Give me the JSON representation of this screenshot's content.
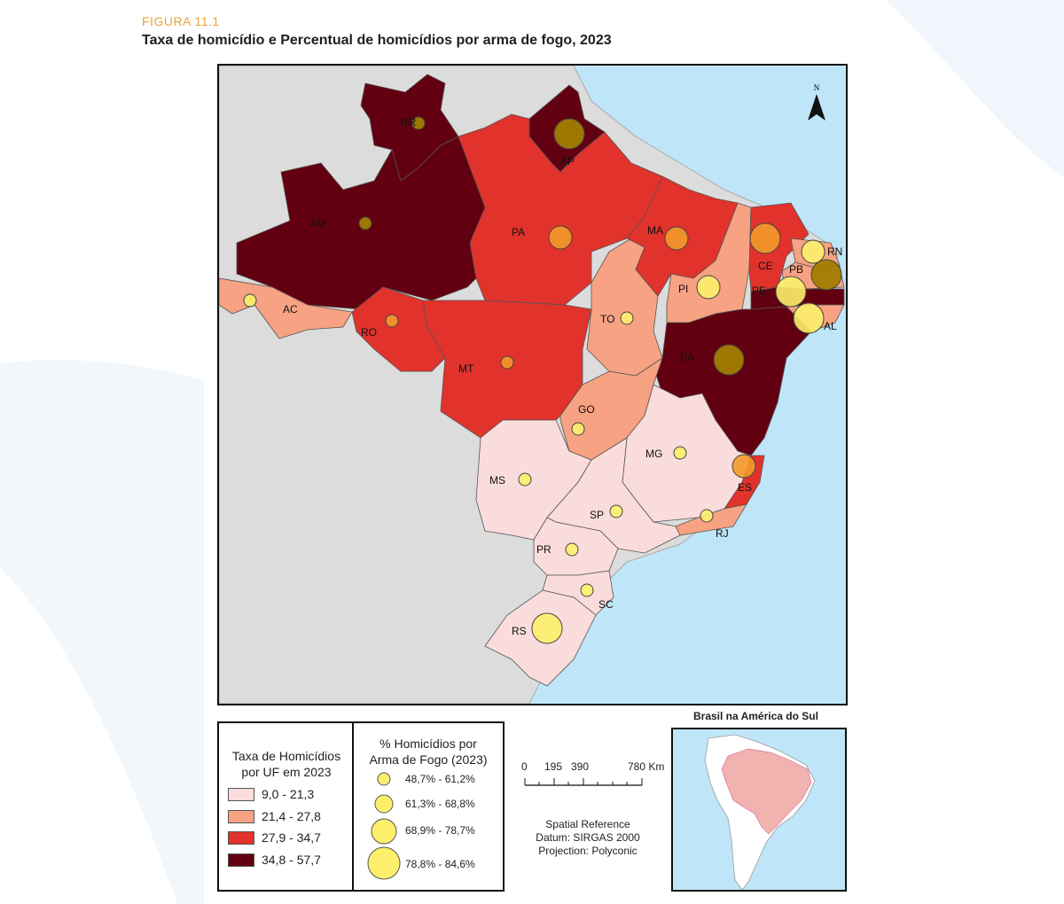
{
  "figure_label": "FIGURA 11.1",
  "title": "Taxa de homicídio e Percentual de homicídios por arma de fogo, 2023",
  "north_label": "N",
  "colors": {
    "class1": "#fadcdc",
    "class2": "#f6a283",
    "class3": "#e1322b",
    "class4": "#620011",
    "ocean": "#bfe6f8",
    "neighbors": "#dcdcdc",
    "bubble_fill": "#fdef6b",
    "bubble_dark_overlay": "#a07d00"
  },
  "legend_rate": {
    "title_line1": "Taxa de Homicídios",
    "title_line2": "por UF em 2023",
    "classes": [
      {
        "label": "9,0 - 21,3",
        "color": "#fadcdc"
      },
      {
        "label": "21,4 - 27,8",
        "color": "#f6a283"
      },
      {
        "label": "27,9 - 34,7",
        "color": "#e1322b"
      },
      {
        "label": "34,8 - 57,7",
        "color": "#620011"
      }
    ]
  },
  "legend_firearm": {
    "title_line1": "% Homicídios por",
    "title_line2": "Arma de Fogo (2023)",
    "classes": [
      {
        "label": "48,7% - 61,2%"
      },
      {
        "label": "61,3% - 68,8%"
      },
      {
        "label": "68,9% - 78,7%"
      },
      {
        "label": "78,8% - 84,6%"
      }
    ]
  },
  "scale": {
    "ticks": [
      "0",
      "195",
      "390",
      "780 Km"
    ]
  },
  "spatial_reference": {
    "line1": "Spatial Reference",
    "line2": "Datum: SIRGAS 2000",
    "line3": "Projection: Polyconic"
  },
  "inset_title": "Brasil na América do Sul",
  "states": [
    {
      "uf": "RR",
      "rate_class": 4,
      "firearm_class": 1
    },
    {
      "uf": "AP",
      "rate_class": 4,
      "firearm_class": 3
    },
    {
      "uf": "AM",
      "rate_class": 4,
      "firearm_class": 1
    },
    {
      "uf": "PA",
      "rate_class": 3,
      "firearm_class": 2
    },
    {
      "uf": "AC",
      "rate_class": 2,
      "firearm_class": 1
    },
    {
      "uf": "RO",
      "rate_class": 3,
      "firearm_class": 1
    },
    {
      "uf": "MT",
      "rate_class": 3,
      "firearm_class": 1
    },
    {
      "uf": "TO",
      "rate_class": 2,
      "firearm_class": 1
    },
    {
      "uf": "MA",
      "rate_class": 3,
      "firearm_class": 2
    },
    {
      "uf": "PI",
      "rate_class": 2,
      "firearm_class": 2
    },
    {
      "uf": "CE",
      "rate_class": 3,
      "firearm_class": 3
    },
    {
      "uf": "RN",
      "rate_class": 2,
      "firearm_class": 2
    },
    {
      "uf": "PB",
      "rate_class": 2,
      "firearm_class": 3
    },
    {
      "uf": "PE",
      "rate_class": 4,
      "firearm_class": 3
    },
    {
      "uf": "AL",
      "rate_class": 2,
      "firearm_class": 3
    },
    {
      "uf": "BA",
      "rate_class": 4,
      "firearm_class": 3
    },
    {
      "uf": "GO",
      "rate_class": 2,
      "firearm_class": 1
    },
    {
      "uf": "MG",
      "rate_class": 1,
      "firearm_class": 1
    },
    {
      "uf": "ES",
      "rate_class": 3,
      "firearm_class": 2
    },
    {
      "uf": "RJ",
      "rate_class": 2,
      "firearm_class": 1
    },
    {
      "uf": "MS",
      "rate_class": 1,
      "firearm_class": 1
    },
    {
      "uf": "SP",
      "rate_class": 1,
      "firearm_class": 1
    },
    {
      "uf": "PR",
      "rate_class": 1,
      "firearm_class": 1
    },
    {
      "uf": "SC",
      "rate_class": 1,
      "firearm_class": 1
    },
    {
      "uf": "RS",
      "rate_class": 1,
      "firearm_class": 3
    }
  ]
}
